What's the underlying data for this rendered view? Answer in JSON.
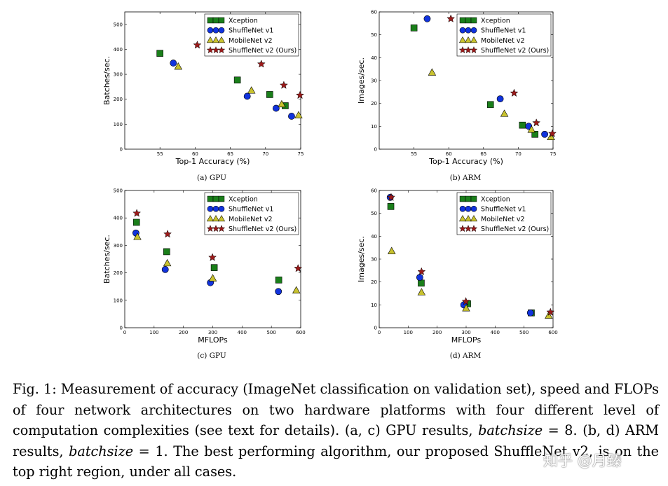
{
  "legend": {
    "entries": [
      {
        "key": "xception",
        "label": "Xception",
        "marker": "square",
        "color": "#1a7f1a"
      },
      {
        "key": "shufflev1",
        "label": "ShuffleNet v1",
        "marker": "circle",
        "color": "#1133dd"
      },
      {
        "key": "mobilenetv2",
        "label": "MobileNet v2",
        "marker": "triangle",
        "color": "#c8c22e"
      },
      {
        "key": "shufflev2",
        "label": "ShuffleNet v2 (Ours)",
        "marker": "star",
        "color": "#9b1a1a"
      }
    ]
  },
  "chart_data": [
    {
      "id": "a",
      "type": "scatter",
      "caption": "(a) GPU",
      "xlabel": "Top-1 Accuracy (%)",
      "ylabel": "Batches/sec.",
      "xlim": [
        50,
        75
      ],
      "ylim": [
        0,
        550
      ],
      "xticks": [
        55,
        60,
        65,
        70,
        75
      ],
      "yticks": [
        0,
        100,
        200,
        300,
        400,
        500
      ],
      "series": [
        {
          "key": "xception",
          "points": [
            [
              55.0,
              384
            ],
            [
              66.0,
              277
            ],
            [
              70.6,
              219
            ],
            [
              72.8,
              174
            ]
          ]
        },
        {
          "key": "shufflev1",
          "points": [
            [
              56.9,
              345
            ],
            [
              67.4,
              212
            ],
            [
              71.5,
              164
            ],
            [
              73.7,
              132
            ]
          ]
        },
        {
          "key": "mobilenetv2",
          "points": [
            [
              57.6,
              331
            ],
            [
              68.0,
              235
            ],
            [
              72.3,
              180
            ],
            [
              74.7,
              136
            ]
          ]
        },
        {
          "key": "shufflev2",
          "points": [
            [
              60.3,
              417
            ],
            [
              69.4,
              341
            ],
            [
              72.6,
              256
            ],
            [
              74.9,
              216
            ]
          ]
        }
      ]
    },
    {
      "id": "b",
      "type": "scatter",
      "caption": "(b) ARM",
      "xlabel": "Top-1 Accuracy (%)",
      "ylabel": "Images/sec.",
      "xlim": [
        50,
        75
      ],
      "ylim": [
        0,
        60
      ],
      "xticks": [
        55,
        60,
        65,
        70,
        75
      ],
      "yticks": [
        0,
        10,
        20,
        30,
        40,
        50,
        60
      ],
      "series": [
        {
          "key": "xception",
          "points": [
            [
              55.0,
              53
            ],
            [
              66.0,
              19.5
            ],
            [
              70.6,
              10.5
            ],
            [
              72.4,
              6.5
            ]
          ]
        },
        {
          "key": "shufflev1",
          "points": [
            [
              56.9,
              57
            ],
            [
              67.4,
              22
            ],
            [
              71.5,
              10
            ],
            [
              73.8,
              6.5
            ]
          ]
        },
        {
          "key": "mobilenetv2",
          "points": [
            [
              57.6,
              33.5
            ],
            [
              68.0,
              15.5
            ],
            [
              71.9,
              8.5
            ],
            [
              74.7,
              5.3
            ]
          ]
        },
        {
          "key": "shufflev2",
          "points": [
            [
              60.3,
              57
            ],
            [
              69.4,
              24.5
            ],
            [
              72.6,
              11.5
            ],
            [
              74.9,
              6.8
            ]
          ]
        }
      ]
    },
    {
      "id": "c",
      "type": "scatter",
      "caption": "(c) GPU",
      "xlabel": "MFLOPs",
      "ylabel": "Batches/sec.",
      "xlim": [
        0,
        600
      ],
      "ylim": [
        0,
        500
      ],
      "xticks": [
        0,
        100,
        200,
        300,
        400,
        500,
        600
      ],
      "yticks": [
        0,
        100,
        200,
        300,
        400,
        500
      ],
      "series": [
        {
          "key": "xception",
          "points": [
            [
              40,
              384
            ],
            [
              143,
              277
            ],
            [
              305,
              219
            ],
            [
              525,
              174
            ]
          ]
        },
        {
          "key": "shufflev1",
          "points": [
            [
              38,
              345
            ],
            [
              138,
              212
            ],
            [
              292,
              164
            ],
            [
              524,
              132
            ]
          ]
        },
        {
          "key": "mobilenetv2",
          "points": [
            [
              43,
              331
            ],
            [
              145,
              235
            ],
            [
              300,
              180
            ],
            [
              585,
              136
            ]
          ]
        },
        {
          "key": "shufflev2",
          "points": [
            [
              41,
              417
            ],
            [
              146,
              341
            ],
            [
              299,
              256
            ],
            [
              591,
              216
            ]
          ]
        }
      ]
    },
    {
      "id": "d",
      "type": "scatter",
      "caption": "(d) ARM",
      "xlabel": "MFLOPs",
      "ylabel": "Images/sec.",
      "xlim": [
        0,
        600
      ],
      "ylim": [
        0,
        60
      ],
      "xticks": [
        0,
        100,
        200,
        300,
        400,
        500,
        600
      ],
      "yticks": [
        0,
        10,
        20,
        30,
        40,
        50,
        60
      ],
      "series": [
        {
          "key": "xception",
          "points": [
            [
              40,
              53
            ],
            [
              145,
              19.5
            ],
            [
              305,
              10.5
            ],
            [
              525,
              6.5
            ]
          ]
        },
        {
          "key": "shufflev1",
          "points": [
            [
              38,
              57
            ],
            [
              140,
              22
            ],
            [
              292,
              10
            ],
            [
              522,
              6.5
            ]
          ]
        },
        {
          "key": "mobilenetv2",
          "points": [
            [
              43,
              33.5
            ],
            [
              146,
              15.5
            ],
            [
              300,
              8.5
            ],
            [
              585,
              5.3
            ]
          ]
        },
        {
          "key": "shufflev2",
          "points": [
            [
              41,
              57
            ],
            [
              146,
              24.5
            ],
            [
              299,
              11.5
            ],
            [
              591,
              6.8
            ]
          ]
        }
      ]
    }
  ],
  "caption": {
    "t1": "Fig. 1: Measurement of accuracy (ImageNet classification on validation set), speed and FLOPs of four network architectures on two hardware platforms with four different level of computation complexities (see text for details). (a, c) GPU results, ",
    "batchsize_a": "batchsize",
    "t2": " = 8. (b, d) ARM results, ",
    "batchsize_b": "batchsize",
    "t3": " = 1. The best performing algorithm, our proposed ShuffleNet v2, is on the top right region, under all cases."
  },
  "watermark": "知乎 @月臻"
}
